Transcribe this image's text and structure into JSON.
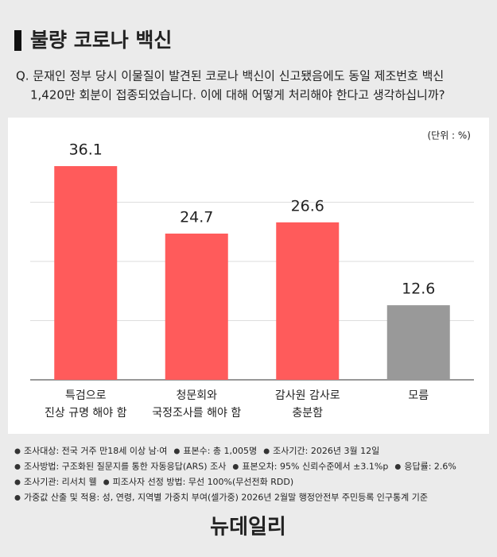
{
  "chart_data": {
    "type": "bar",
    "title": "불량 코로나 백신",
    "subtitle": [
      "Q. 문재인 정부 당시 이물질이 발견된 코로나 백신이 신고됐음에도 동일 제조번호 백신",
      "1,420만 회분이 접종되었습니다. 이에 대해 어떻게 처리해야 한다고 생각하십니까?"
    ],
    "unit": "(단위 : %)",
    "categories": [
      "특검으로\n진상 규명 해야 함",
      "청문회와\n국정조사를 해야 함",
      "감사원 감사로\n충분함",
      "모름"
    ],
    "values": [
      36.1,
      24.7,
      26.6,
      12.6
    ],
    "colors": [
      "#ff5b5b",
      "#ff5b5b",
      "#ff5b5b",
      "#999999"
    ],
    "ylim": [
      0,
      40
    ],
    "yticks": [
      0,
      10,
      20,
      30
    ],
    "grid": true,
    "notes": [
      [
        "조사대상: 전국 거주 만18세 이상 남·여",
        "표본수: 총 1,005명",
        "조사기간: 2026년 3월 12일"
      ],
      [
        "조사방법: 구조화된 질문지를 통한 자동응답(ARS) 조사",
        "표본오차: 95% 신뢰수준에서 ±3.1%p",
        "응답률: 2.6%"
      ],
      [
        "조사기관: 리서치 웰",
        "피조사자 선정 방법: 무선 100%(무선전화 RDD)"
      ],
      [
        "가중값 산출 및 적용: 성, 연령, 지역별 가중치 부여(셀가중) 2026년 2월말 행정안전부 주민등록 인구통계 기준"
      ]
    ],
    "source": "뉴데일리"
  }
}
